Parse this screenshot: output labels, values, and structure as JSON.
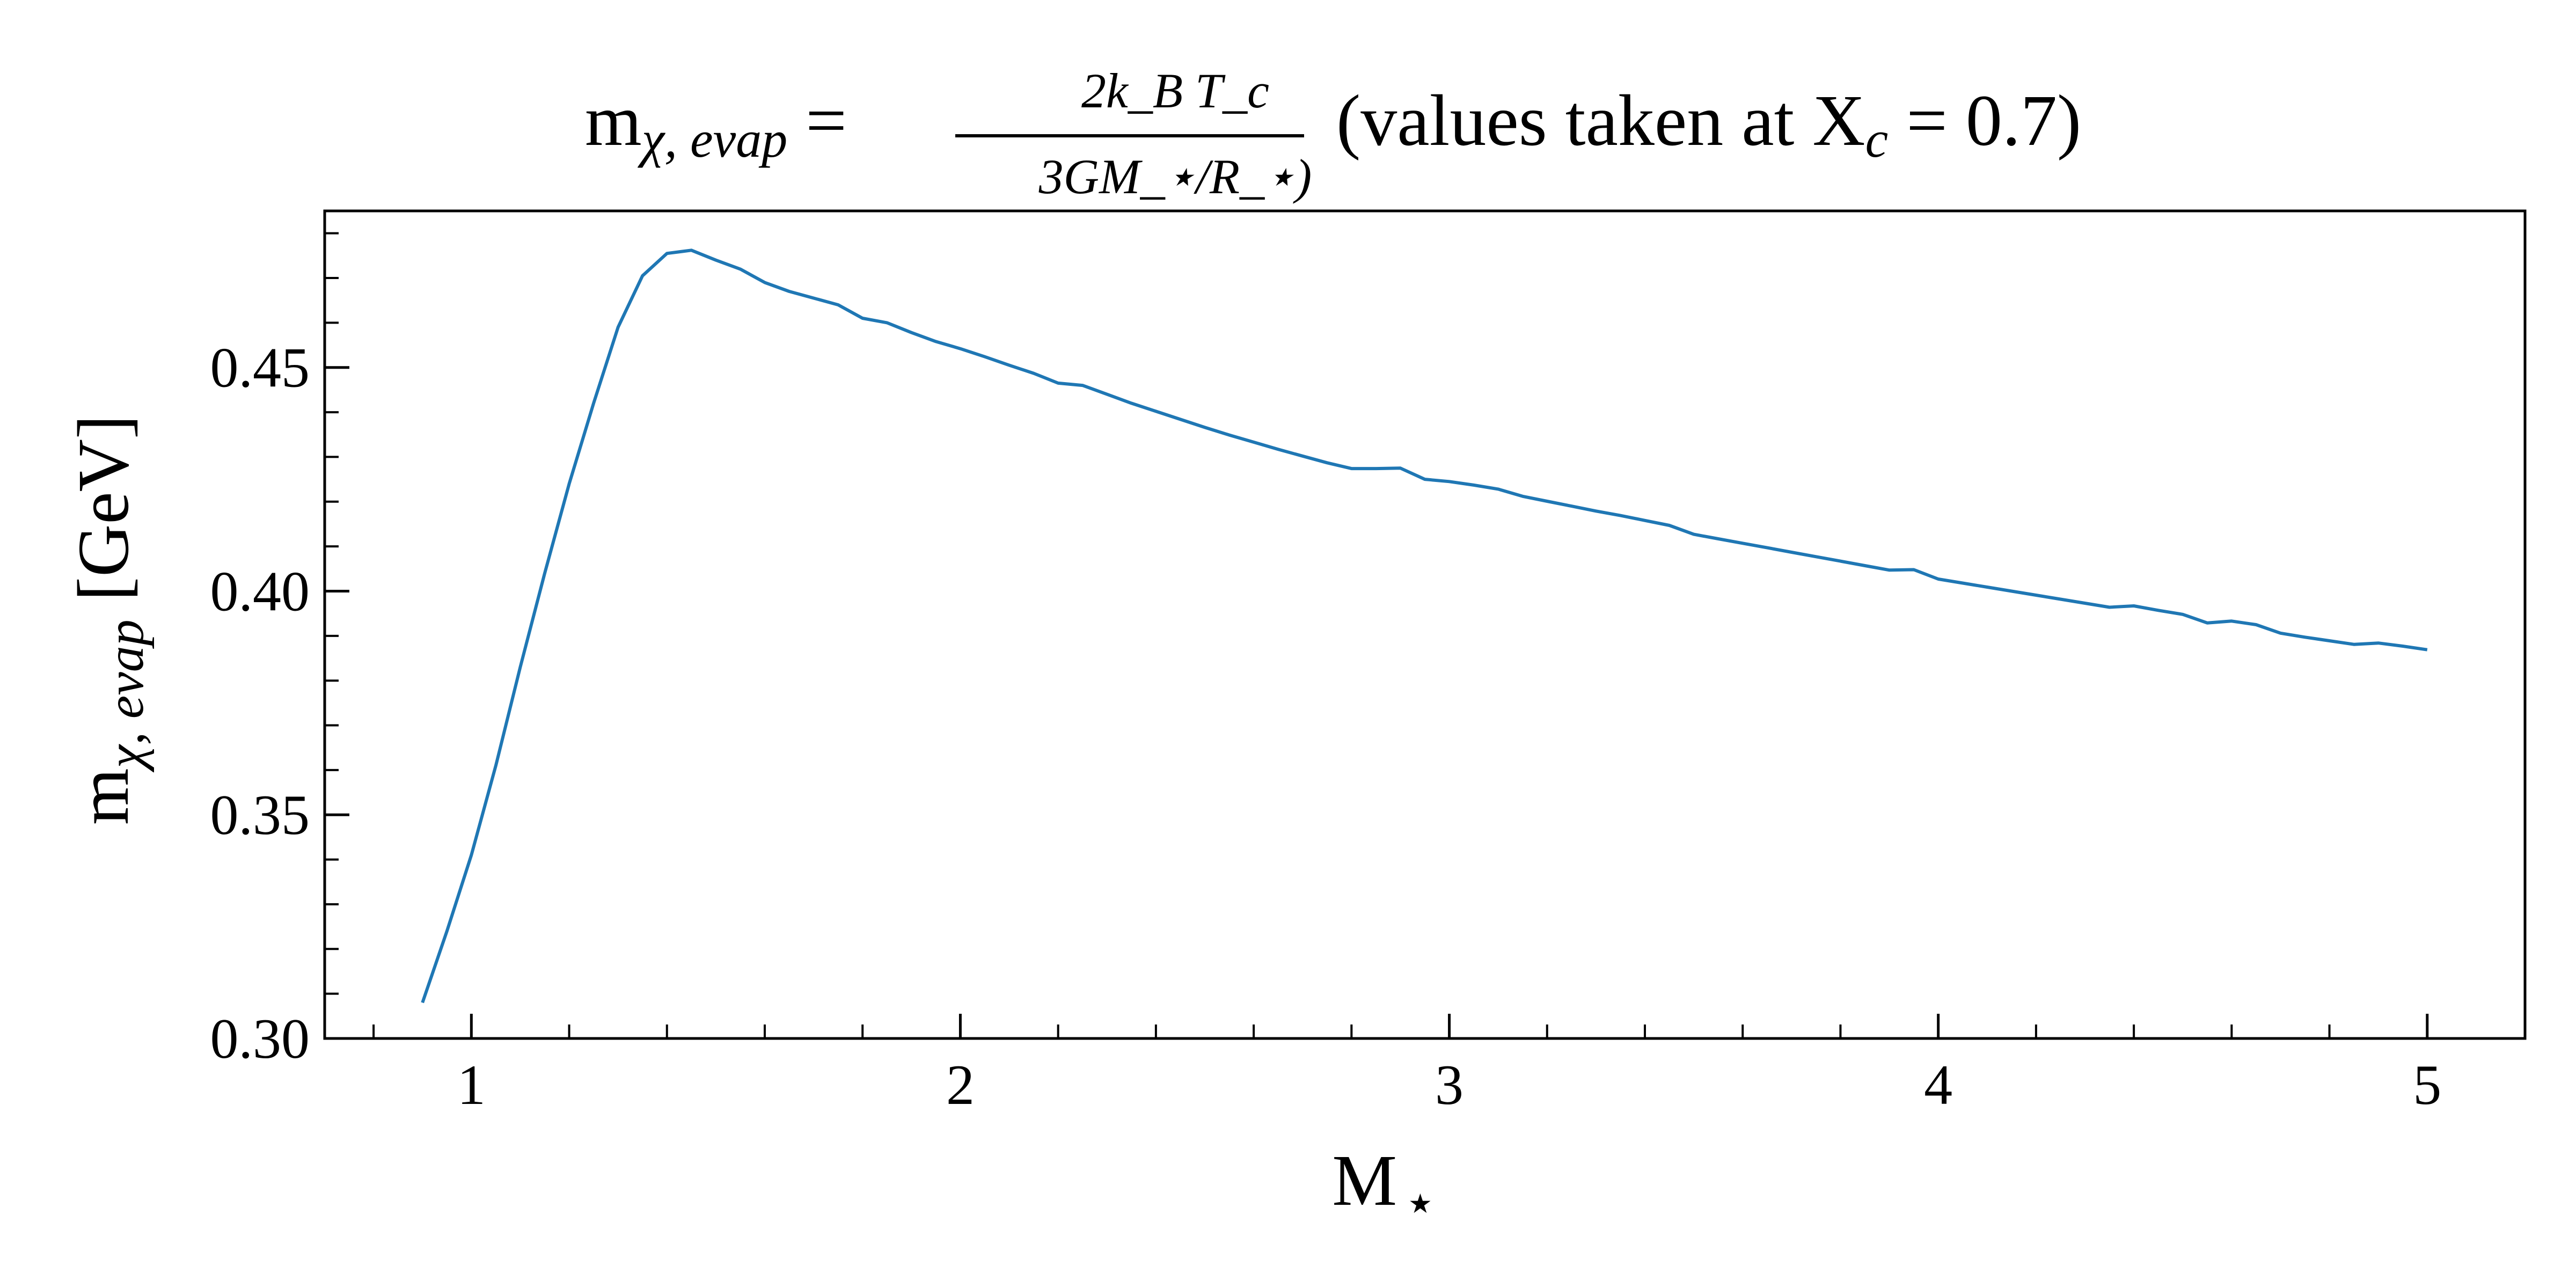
{
  "chart_data": {
    "type": "line",
    "title": {
      "lhs_base": "m",
      "lhs_sub": "χ, evap",
      "equals": "=",
      "numerator": "2k_B T_c",
      "denominator": "3GM_⋆/R_⋆)",
      "note_prefix": "(values taken at X",
      "note_sub": "c",
      "note_suffix": " = 0.7)"
    },
    "xlabel": {
      "base": "M",
      "sub": "⋆"
    },
    "ylabel": {
      "base": "m",
      "sub": "χ, evap",
      "unit": " [GeV]"
    },
    "xlim": [
      0.7,
      5.2
    ],
    "ylim": [
      0.3,
      0.485
    ],
    "xticks": [
      1,
      2,
      3,
      4,
      5
    ],
    "xtick_labels": [
      "1",
      "2",
      "3",
      "4",
      "5"
    ],
    "xminor_step": 0.2,
    "yticks": [
      0.3,
      0.35,
      0.4,
      0.45
    ],
    "ytick_labels": [
      "0.30",
      "0.35",
      "0.40",
      "0.45"
    ],
    "yminor_step": 0.01,
    "grid": false,
    "series_color": "#1f77b4",
    "series": [
      {
        "x": [
          0.9,
          0.95,
          1.0,
          1.05,
          1.1,
          1.15,
          1.2,
          1.25,
          1.3,
          1.35,
          1.4,
          1.45,
          1.5,
          1.55,
          1.6,
          1.65,
          1.7,
          1.75,
          1.8,
          1.85,
          1.9,
          1.95,
          2.0,
          2.05,
          2.1,
          2.15,
          2.2,
          2.25,
          2.3,
          2.35,
          2.4,
          2.45,
          2.5,
          2.55,
          2.6,
          2.65,
          2.7,
          2.75,
          2.8,
          2.85,
          2.9,
          2.95,
          3.0,
          3.05,
          3.1,
          3.15,
          3.2,
          3.25,
          3.3,
          3.35,
          3.4,
          3.45,
          3.5,
          3.55,
          3.6,
          3.65,
          3.7,
          3.75,
          3.8,
          3.85,
          3.9,
          3.95,
          4.0,
          4.05,
          4.1,
          4.15,
          4.2,
          4.25,
          4.3,
          4.35,
          4.4,
          4.45,
          4.5,
          4.55,
          4.6,
          4.65,
          4.7,
          4.75,
          4.8,
          4.85,
          4.9,
          4.95,
          5.0
        ],
        "values": [
          0.308,
          0.324,
          0.341,
          0.361,
          0.383,
          0.404,
          0.424,
          0.442,
          0.459,
          0.4705,
          0.4755,
          0.4762,
          0.474,
          0.472,
          0.469,
          0.467,
          0.4655,
          0.464,
          0.461,
          0.46,
          0.4578,
          0.4558,
          0.4542,
          0.4524,
          0.4505,
          0.4487,
          0.4465,
          0.446,
          0.444,
          0.442,
          0.4402,
          0.4384,
          0.4366,
          0.4349,
          0.4333,
          0.4317,
          0.4302,
          0.4287,
          0.4274,
          0.4274,
          0.4275,
          0.425,
          0.4245,
          0.4237,
          0.4228,
          0.4212,
          0.4201,
          0.419,
          0.4179,
          0.4169,
          0.4158,
          0.4147,
          0.4127,
          0.4117,
          0.4107,
          0.4097,
          0.4087,
          0.4077,
          0.4067,
          0.4057,
          0.4047,
          0.4048,
          0.4027,
          0.4018,
          0.4009,
          0.4,
          0.3991,
          0.3982,
          0.3973,
          0.3964,
          0.3967,
          0.3957,
          0.3948,
          0.3929,
          0.3933,
          0.3925,
          0.3906,
          0.3897,
          0.3889,
          0.3881,
          0.3884,
          0.3877,
          0.3869
        ]
      }
    ]
  }
}
